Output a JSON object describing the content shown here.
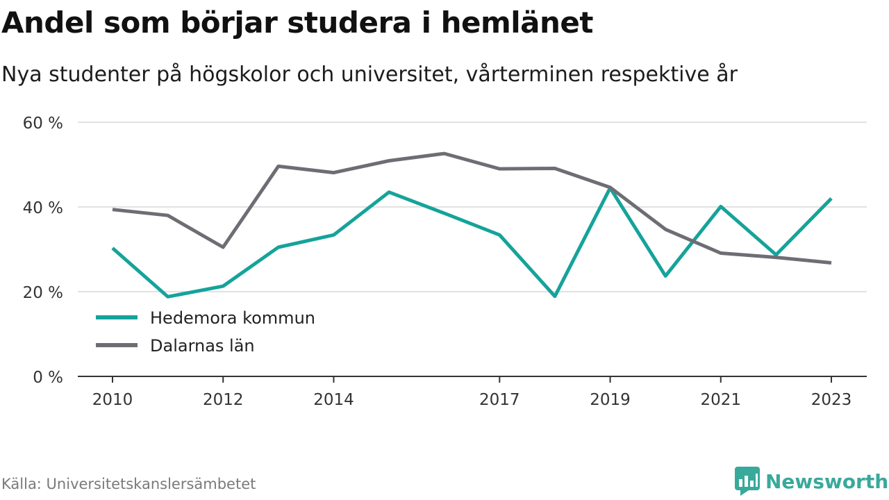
{
  "title": "Andel som börjar studera i hemlänet",
  "subtitle": "Nya studenter på högskolor och universitet, vårterminen respektive år",
  "source": "Källa: Universitetskanslersämbetet",
  "brand": {
    "name": "Newsworthy",
    "icon": "newsworthy-logo-icon",
    "color": "#39a99b"
  },
  "chart_data": {
    "type": "line",
    "x": [
      2010,
      2011,
      2012,
      2013,
      2014,
      2015,
      2016,
      2017,
      2018,
      2019,
      2020,
      2021,
      2022,
      2023
    ],
    "x_tick_labels": [
      "2010",
      "2012",
      "2014",
      "2017",
      "2019",
      "2021",
      "2023"
    ],
    "x_tick_values": [
      2010,
      2012,
      2014,
      2017,
      2019,
      2021,
      2023
    ],
    "ylim": [
      0,
      60
    ],
    "y_ticks": [
      0,
      20,
      40,
      60
    ],
    "y_tick_labels": [
      "0 %",
      "20 %",
      "40 %",
      "60 %"
    ],
    "grid": true,
    "legend_position": "bottom-left",
    "series": [
      {
        "name": "Hedemora kommun",
        "color": "#15a39a",
        "values": [
          30.3,
          18.8,
          21.3,
          30.5,
          33.4,
          43.5,
          38.5,
          33.4,
          18.9,
          44.5,
          23.7,
          40.1,
          28.7,
          42.0
        ]
      },
      {
        "name": "Dalarnas län",
        "color": "#6e6d74",
        "values": [
          39.4,
          38.0,
          30.5,
          49.6,
          48.1,
          50.9,
          52.6,
          49.0,
          49.1,
          44.6,
          34.7,
          29.1,
          28.1,
          26.8
        ]
      }
    ]
  }
}
